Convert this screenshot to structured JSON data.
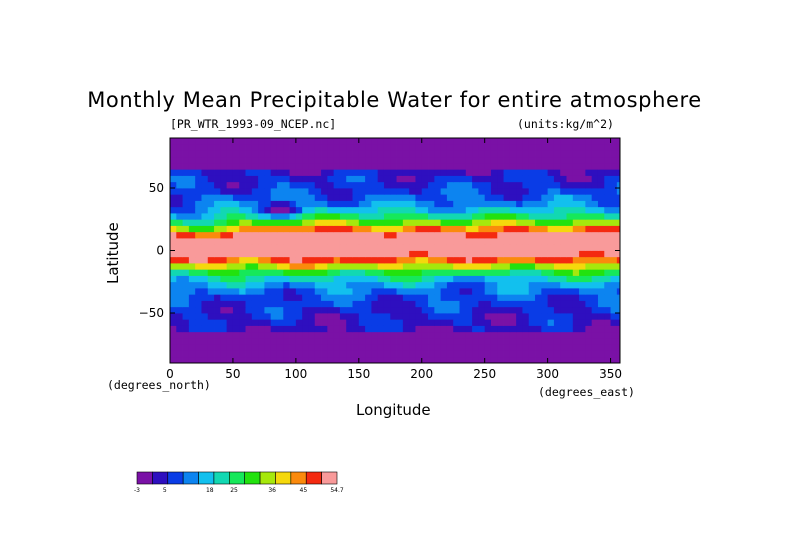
{
  "chart_data": {
    "type": "heatmap",
    "title": "Monthly Mean Precipitable Water for entire atmosphere",
    "subtitle": "[PR_WTR_1993-09_NCEP.nc]",
    "units_label": "(units:kg/m^2)",
    "xlabel": "Longitude",
    "ylabel": "Latitude",
    "x_units": "(degrees_east)",
    "y_units": "(degrees_north)",
    "xlim": [
      0,
      357.5
    ],
    "ylim": [
      -90,
      90
    ],
    "xticks": [
      0,
      50,
      100,
      150,
      200,
      250,
      300,
      350
    ],
    "yticks": [
      50,
      0,
      -50
    ],
    "xtick_labels": [
      "0",
      "50",
      "100",
      "150",
      "200",
      "250",
      "300",
      "350"
    ],
    "ytick_labels": [
      "50",
      "0",
      "−50"
    ],
    "colorbar": {
      "colors": [
        "#7a11a6",
        "#2e0fbf",
        "#0a3ce6",
        "#0c84f0",
        "#12c0ee",
        "#12d8b2",
        "#16e85a",
        "#22e20e",
        "#a6e80c",
        "#f5d80c",
        "#fb8a0c",
        "#f42a10",
        "#f99a9a"
      ],
      "tick_values": [
        -3,
        5,
        18,
        25,
        36,
        45,
        54.7
      ],
      "tick_labels": [
        "-3",
        "5",
        "18",
        "25",
        "36",
        "45",
        "54.7"
      ]
    }
  }
}
